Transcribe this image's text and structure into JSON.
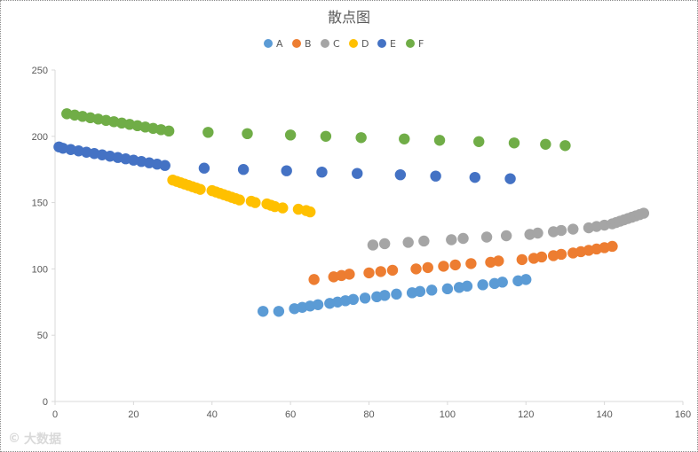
{
  "chart_data": {
    "type": "scatter",
    "title": "散点图",
    "xlabel": "",
    "ylabel": "",
    "xlim": [
      0,
      160
    ],
    "ylim": [
      0,
      250
    ],
    "x_ticks": [
      0,
      20,
      40,
      60,
      80,
      100,
      120,
      140,
      160
    ],
    "y_ticks": [
      0,
      50,
      100,
      150,
      200,
      250
    ],
    "grid": false,
    "legend_position": "top",
    "series": [
      {
        "name": "A",
        "color": "#5B9BD5",
        "points": [
          [
            53,
            68
          ],
          [
            57,
            68
          ],
          [
            61,
            70
          ],
          [
            63,
            71
          ],
          [
            65,
            72
          ],
          [
            67,
            73
          ],
          [
            70,
            74
          ],
          [
            72,
            75
          ],
          [
            74,
            76
          ],
          [
            76,
            77
          ],
          [
            79,
            78
          ],
          [
            82,
            79
          ],
          [
            84,
            80
          ],
          [
            87,
            81
          ],
          [
            91,
            82
          ],
          [
            93,
            83
          ],
          [
            96,
            84
          ],
          [
            100,
            85
          ],
          [
            103,
            86
          ],
          [
            105,
            87
          ],
          [
            109,
            88
          ],
          [
            112,
            89
          ],
          [
            114,
            90
          ],
          [
            118,
            91
          ],
          [
            120,
            92
          ]
        ]
      },
      {
        "name": "B",
        "color": "#ED7D31",
        "points": [
          [
            66,
            92
          ],
          [
            71,
            94
          ],
          [
            73,
            95
          ],
          [
            75,
            96
          ],
          [
            80,
            97
          ],
          [
            83,
            98
          ],
          [
            86,
            99
          ],
          [
            92,
            100
          ],
          [
            95,
            101
          ],
          [
            99,
            102
          ],
          [
            102,
            103
          ],
          [
            106,
            104
          ],
          [
            111,
            105
          ],
          [
            113,
            106
          ],
          [
            119,
            107
          ],
          [
            122,
            108
          ],
          [
            124,
            109
          ],
          [
            127,
            110
          ],
          [
            129,
            111
          ],
          [
            132,
            112
          ],
          [
            134,
            113
          ],
          [
            136,
            114
          ],
          [
            138,
            115
          ],
          [
            140,
            116
          ],
          [
            142,
            117
          ]
        ]
      },
      {
        "name": "C",
        "color": "#A5A5A5",
        "points": [
          [
            81,
            118
          ],
          [
            84,
            119
          ],
          [
            90,
            120
          ],
          [
            94,
            121
          ],
          [
            101,
            122
          ],
          [
            104,
            123
          ],
          [
            110,
            124
          ],
          [
            115,
            125
          ],
          [
            121,
            126
          ],
          [
            123,
            127
          ],
          [
            127,
            128
          ],
          [
            129,
            129
          ],
          [
            132,
            130
          ],
          [
            136,
            131
          ],
          [
            138,
            132
          ],
          [
            140,
            133
          ],
          [
            142,
            134
          ],
          [
            143,
            135
          ],
          [
            144,
            136
          ],
          [
            145,
            137
          ],
          [
            146,
            138
          ],
          [
            147,
            139
          ],
          [
            148,
            140
          ],
          [
            149,
            141
          ],
          [
            150,
            142
          ]
        ]
      },
      {
        "name": "D",
        "color": "#FFC000",
        "points": [
          [
            30,
            167
          ],
          [
            31,
            166
          ],
          [
            32,
            165
          ],
          [
            33,
            164
          ],
          [
            34,
            163
          ],
          [
            35,
            162
          ],
          [
            36,
            161
          ],
          [
            37,
            160
          ],
          [
            40,
            159
          ],
          [
            41,
            158
          ],
          [
            42,
            157
          ],
          [
            43,
            156
          ],
          [
            44,
            155
          ],
          [
            45,
            154
          ],
          [
            46,
            153
          ],
          [
            47,
            152
          ],
          [
            50,
            151
          ],
          [
            51,
            150
          ],
          [
            54,
            149
          ],
          [
            55,
            148
          ],
          [
            56,
            147
          ],
          [
            58,
            146
          ],
          [
            62,
            145
          ],
          [
            64,
            144
          ],
          [
            65,
            143
          ]
        ]
      },
      {
        "name": "E",
        "color": "#4472C4",
        "points": [
          [
            1,
            192
          ],
          [
            2,
            191
          ],
          [
            4,
            190
          ],
          [
            6,
            189
          ],
          [
            8,
            188
          ],
          [
            10,
            187
          ],
          [
            12,
            186
          ],
          [
            14,
            185
          ],
          [
            16,
            184
          ],
          [
            18,
            183
          ],
          [
            20,
            182
          ],
          [
            22,
            181
          ],
          [
            24,
            180
          ],
          [
            26,
            179
          ],
          [
            28,
            178
          ],
          [
            38,
            176
          ],
          [
            48,
            175
          ],
          [
            59,
            174
          ],
          [
            68,
            173
          ],
          [
            77,
            172
          ],
          [
            88,
            171
          ],
          [
            97,
            170
          ],
          [
            107,
            169
          ],
          [
            116,
            168
          ]
        ]
      },
      {
        "name": "F",
        "color": "#70AD47",
        "points": [
          [
            3,
            217
          ],
          [
            5,
            216
          ],
          [
            7,
            215
          ],
          [
            9,
            214
          ],
          [
            11,
            213
          ],
          [
            13,
            212
          ],
          [
            15,
            211
          ],
          [
            17,
            210
          ],
          [
            19,
            209
          ],
          [
            21,
            208
          ],
          [
            23,
            207
          ],
          [
            25,
            206
          ],
          [
            27,
            205
          ],
          [
            29,
            204
          ],
          [
            39,
            203
          ],
          [
            49,
            202
          ],
          [
            60,
            201
          ],
          [
            69,
            200
          ],
          [
            78,
            199
          ],
          [
            89,
            198
          ],
          [
            98,
            197
          ],
          [
            108,
            196
          ],
          [
            117,
            195
          ],
          [
            125,
            194
          ],
          [
            130,
            193
          ]
        ]
      }
    ]
  },
  "watermark": {
    "text": "大数据"
  }
}
